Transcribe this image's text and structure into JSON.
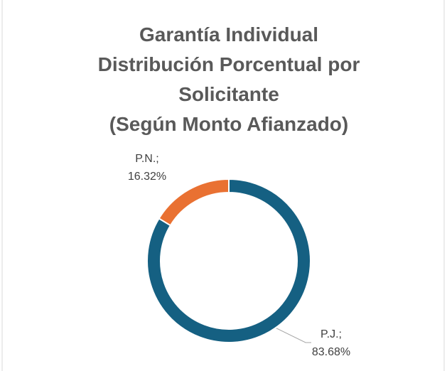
{
  "chart_data": {
    "type": "donut",
    "title": [
      "Garantía Individual",
      "Distribución Porcentual por",
      "Solicitante",
      "(Según Monto Afianzado)"
    ],
    "categories": [
      "P.J.",
      "P.N."
    ],
    "values": [
      83.68,
      16.32
    ],
    "value_labels": [
      "83.68%",
      "16.32%"
    ],
    "label_separator": ";",
    "colors": [
      "#156082",
      "#e97132"
    ]
  }
}
